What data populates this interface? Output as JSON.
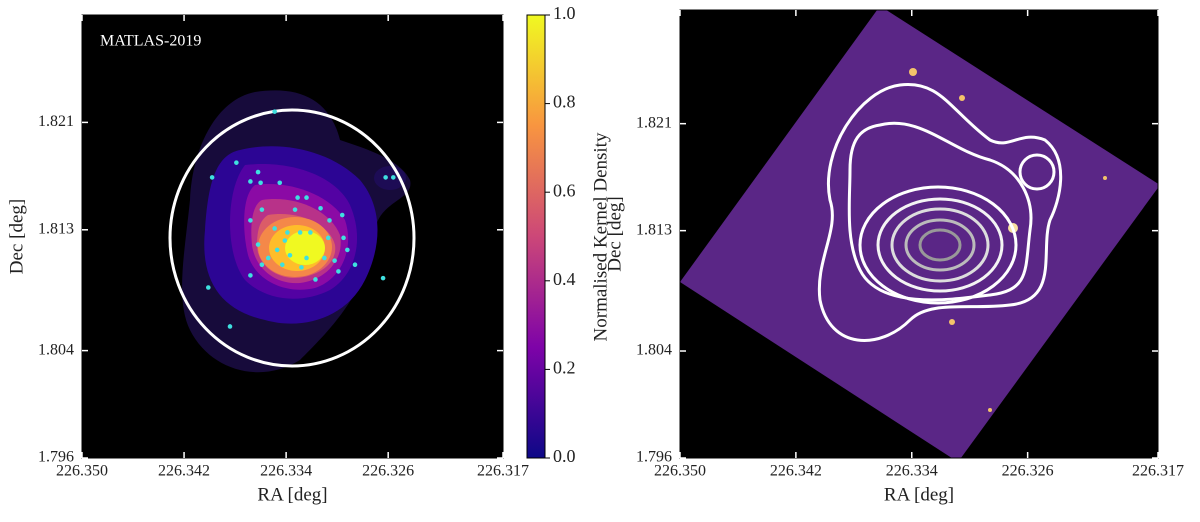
{
  "chart_data": [
    {
      "type": "scatter",
      "annotation": "MATLAS-2019",
      "xlabel": "RA [deg]",
      "ylabel": "Dec [deg]",
      "xlim": [
        226.35,
        226.317
      ],
      "ylim": [
        1.796,
        1.829
      ],
      "xticks": [
        {
          "value": 226.35,
          "label": "226.350"
        },
        226.342,
        226.334,
        226.326,
        226.317
      ],
      "yticks": [
        1.796,
        1.804,
        1.813,
        1.821
      ],
      "x": [
        226.3349,
        226.3379,
        226.3362,
        226.3398,
        226.3368,
        226.336,
        226.3345,
        226.3262,
        226.3256,
        226.3331,
        226.3324,
        226.3313,
        226.3296,
        226.3359,
        226.3333,
        226.3306,
        226.3368,
        226.3349,
        226.3339,
        226.3329,
        226.3321,
        226.3341,
        226.3362,
        226.3295,
        226.3307,
        226.3292,
        226.3347,
        226.3337,
        226.3324,
        226.331,
        226.3302,
        226.3359,
        226.3343,
        226.3328,
        226.3299,
        226.3368,
        226.3286,
        226.3317,
        226.3264,
        226.3401,
        226.3384,
        226.3354
      ],
      "y": [
        1.8218,
        1.818,
        1.8173,
        1.8169,
        1.8166,
        1.8165,
        1.8165,
        1.8169,
        1.8169,
        1.8154,
        1.8154,
        1.8146,
        1.8141,
        1.8145,
        1.8145,
        1.8137,
        1.8137,
        1.8131,
        1.8128,
        1.8128,
        1.8128,
        1.8122,
        1.8119,
        1.8124,
        1.8124,
        1.8115,
        1.8115,
        1.8111,
        1.8109,
        1.8109,
        1.8107,
        1.8104,
        1.8104,
        1.8102,
        1.8099,
        1.8096,
        1.8104,
        1.8093,
        1.8094,
        1.8087,
        1.8058,
        1.8109
      ],
      "color": "#3fe0e0",
      "colorbar": {
        "label": "Normalised Kernel Density",
        "lim": [
          0,
          1
        ],
        "ticks": [
          {
            "value": 0,
            "label": "0.0"
          },
          0.2,
          0.4,
          0.6,
          0.8,
          {
            "value": 1,
            "label": "1.0"
          }
        ]
      }
    },
    {
      "type": "image",
      "xlabel": "RA [deg]",
      "ylabel": "Dec [deg]",
      "xlim": [
        226.35,
        226.317
      ],
      "ylim": [
        1.796,
        1.8295
      ],
      "xticks": [
        {
          "value": 226.35,
          "label": "226.350"
        },
        226.342,
        226.334,
        226.326,
        226.317
      ],
      "yticks": [
        1.796,
        1.804,
        1.813,
        1.821
      ]
    }
  ]
}
